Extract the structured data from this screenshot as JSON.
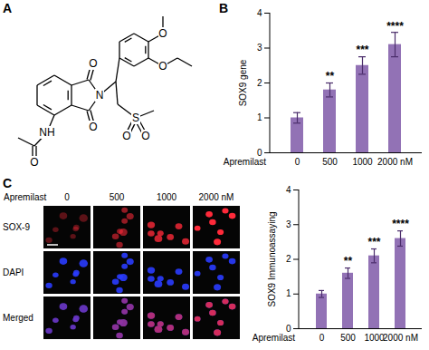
{
  "panel_labels": [
    "A",
    "B",
    "C"
  ],
  "structure": {
    "atom_labels": [
      "O",
      "O",
      "N",
      "NH",
      "O",
      "O",
      "O",
      "S",
      "O",
      "O"
    ]
  },
  "micrographs": {
    "treatment": "Apremilast",
    "columns": [
      "0",
      "500",
      "1000",
      "2000 nM"
    ],
    "rows": [
      "SOX-9",
      "DAPI",
      "Merged"
    ]
  },
  "chart_data": [
    {
      "type": "bar",
      "categories": [
        "0",
        "500",
        "1000",
        "2000 nM"
      ],
      "xlabel": "Apremilast",
      "ylabel": "SOX9 gene",
      "values": [
        1.0,
        1.8,
        2.5,
        3.1
      ],
      "errors": [
        0.15,
        0.2,
        0.25,
        0.35
      ],
      "significance": [
        null,
        "**",
        "***",
        "****"
      ],
      "color": "#9272b5",
      "ylim": [
        0,
        4
      ],
      "yticks": [
        0,
        1,
        2,
        3,
        4
      ]
    },
    {
      "type": "bar",
      "categories": [
        "0",
        "500",
        "1000",
        "2000 nM"
      ],
      "xlabel": "Apremilast",
      "ylabel": "SOX9 Immunoassaying",
      "values": [
        1.0,
        1.6,
        2.1,
        2.6
      ],
      "errors": [
        0.1,
        0.15,
        0.2,
        0.22
      ],
      "significance": [
        null,
        "**",
        "***",
        "****"
      ],
      "color": "#9272b5",
      "ylim": [
        0,
        4
      ],
      "yticks": [
        0,
        1,
        2,
        3,
        4
      ]
    }
  ]
}
